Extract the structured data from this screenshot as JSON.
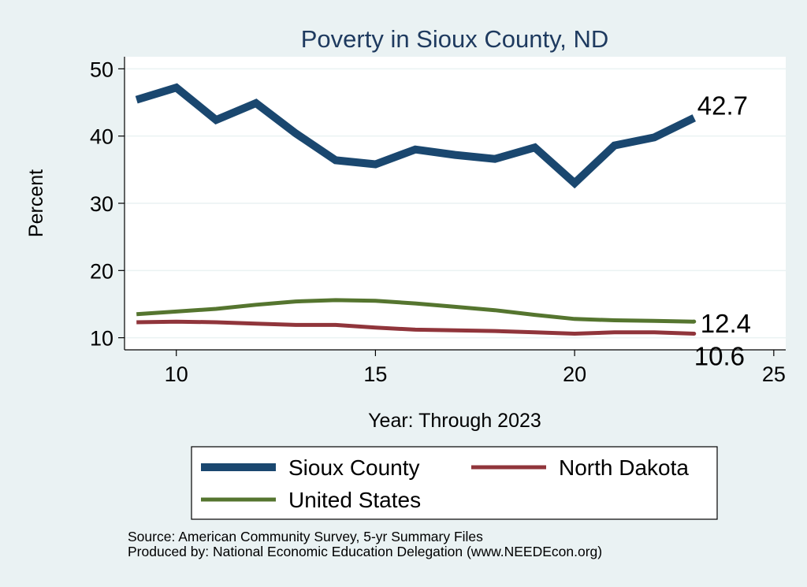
{
  "chart_data": {
    "type": "line",
    "title": "Poverty in Sioux County, ND",
    "xlabel": "Year: Through 2023",
    "ylabel": "Percent",
    "xlim": [
      8.7,
      25.3
    ],
    "ylim": [
      8.2,
      51.8
    ],
    "x_ticks": [
      10,
      15,
      20,
      25
    ],
    "y_ticks": [
      10,
      20,
      30,
      40,
      50
    ],
    "grid": "horizontal",
    "colors": {
      "background": "#eaf2f3",
      "plot_background": "#ffffff",
      "title": "#1e3a5f",
      "sioux": "#1a476f",
      "north_dakota": "#90353b",
      "united_states": "#55752f"
    },
    "x": [
      9,
      10,
      11,
      12,
      13,
      14,
      15,
      16,
      17,
      18,
      19,
      20,
      21,
      22,
      23
    ],
    "series": [
      {
        "name": "Sioux County",
        "values": [
          45.4,
          47.2,
          42.4,
          44.9,
          40.4,
          36.4,
          35.8,
          38.0,
          37.2,
          36.6,
          38.3,
          33.0,
          38.6,
          39.8,
          42.7
        ]
      },
      {
        "name": "North Dakota",
        "values": [
          12.3,
          12.4,
          12.3,
          12.1,
          11.9,
          11.9,
          11.5,
          11.2,
          11.1,
          11.0,
          10.8,
          10.6,
          10.8,
          10.8,
          10.6
        ]
      },
      {
        "name": "United States",
        "values": [
          13.5,
          13.9,
          14.3,
          14.9,
          15.4,
          15.6,
          15.5,
          15.1,
          14.6,
          14.1,
          13.4,
          12.8,
          12.6,
          12.5,
          12.4
        ]
      }
    ],
    "end_labels": [
      "42.7",
      "12.4",
      "10.6"
    ],
    "legend": {
      "position": "bottom",
      "items": [
        "Sioux County",
        "North Dakota",
        "United States"
      ]
    }
  },
  "footer": {
    "source": "Source: American Community Survey, 5-yr Summary Files",
    "produced_by": "Produced by: National Economic Education Delegation (www.NEEDEcon.org)"
  }
}
